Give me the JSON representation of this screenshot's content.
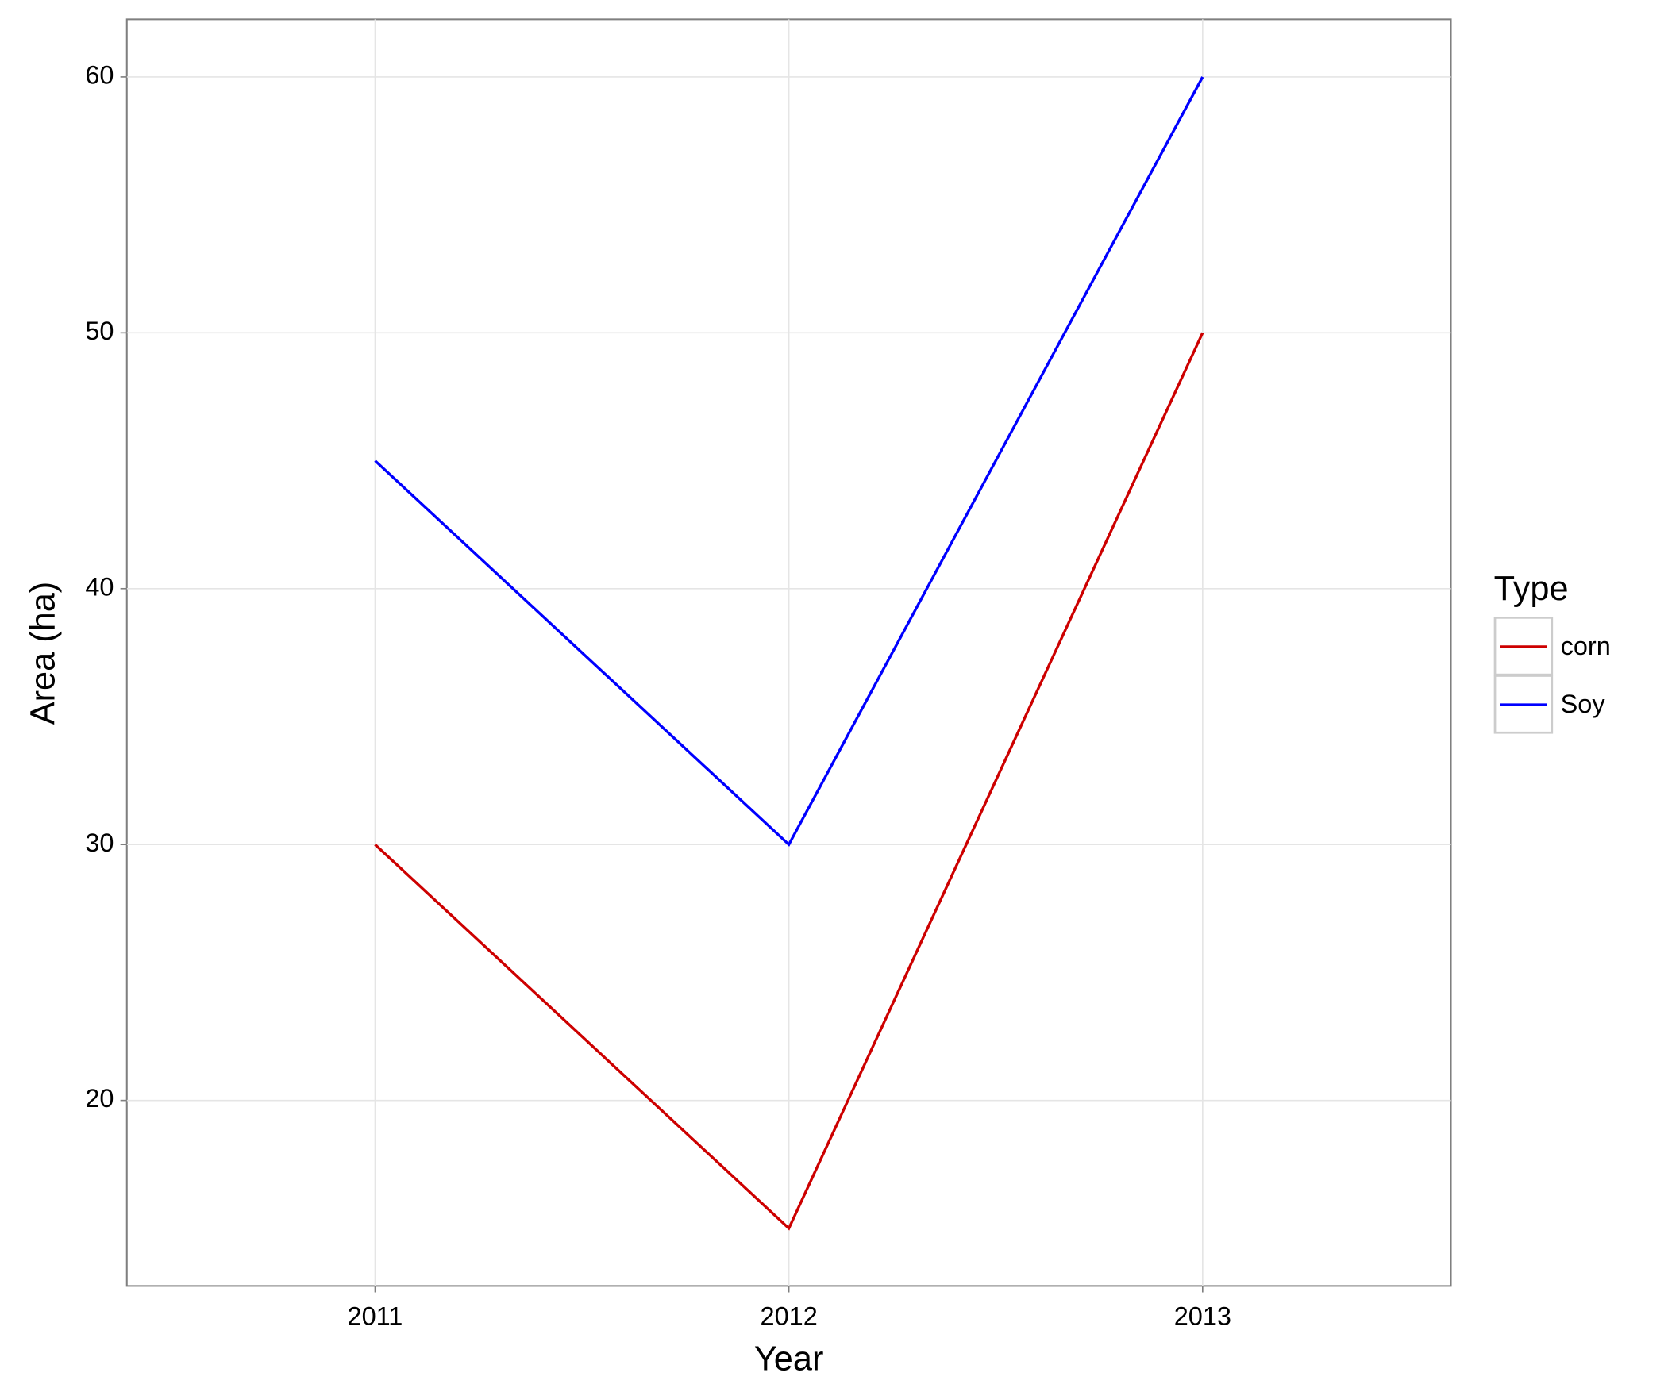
{
  "chart_data": {
    "type": "line",
    "x_label": "Year",
    "y_label": "Area (ha)",
    "categories": [
      "2011",
      "2012",
      "2013"
    ],
    "series": [
      {
        "name": "corn",
        "color": "#cd0000",
        "values": [
          30,
          15,
          50
        ]
      },
      {
        "name": "Soy",
        "color": "#0000ff",
        "values": [
          45,
          30,
          60
        ]
      }
    ],
    "ylim": [
      12.75,
      62.25
    ],
    "yticks": [
      20,
      30,
      40,
      50,
      60
    ],
    "grid": true,
    "legend_title": "Type",
    "legend_position": "right"
  }
}
